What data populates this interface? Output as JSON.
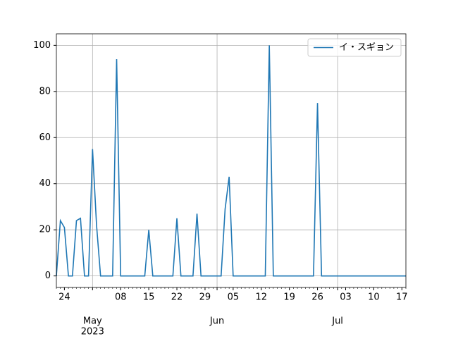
{
  "chart_data": {
    "type": "line",
    "x": [
      "2023-04-22",
      "2023-04-23",
      "2023-04-24",
      "2023-04-25",
      "2023-04-26",
      "2023-04-27",
      "2023-04-28",
      "2023-04-29",
      "2023-04-30",
      "2023-05-01",
      "2023-05-02",
      "2023-05-03",
      "2023-05-04",
      "2023-05-05",
      "2023-05-06",
      "2023-05-07",
      "2023-05-08",
      "2023-05-09",
      "2023-05-10",
      "2023-05-11",
      "2023-05-12",
      "2023-05-13",
      "2023-05-14",
      "2023-05-15",
      "2023-05-16",
      "2023-05-17",
      "2023-05-18",
      "2023-05-19",
      "2023-05-20",
      "2023-05-21",
      "2023-05-22",
      "2023-05-23",
      "2023-05-24",
      "2023-05-25",
      "2023-05-26",
      "2023-05-27",
      "2023-05-28",
      "2023-05-29",
      "2023-05-30",
      "2023-05-31",
      "2023-06-01",
      "2023-06-02",
      "2023-06-03",
      "2023-06-04",
      "2023-06-05",
      "2023-06-06",
      "2023-06-07",
      "2023-06-08",
      "2023-06-09",
      "2023-06-10",
      "2023-06-11",
      "2023-06-12",
      "2023-06-13",
      "2023-06-14",
      "2023-06-15",
      "2023-06-16",
      "2023-06-17",
      "2023-06-18",
      "2023-06-19",
      "2023-06-20",
      "2023-06-21",
      "2023-06-22",
      "2023-06-23",
      "2023-06-24",
      "2023-06-25",
      "2023-06-26",
      "2023-06-27",
      "2023-06-28",
      "2023-06-29",
      "2023-06-30",
      "2023-07-01",
      "2023-07-02",
      "2023-07-03",
      "2023-07-04",
      "2023-07-05",
      "2023-07-06",
      "2023-07-07",
      "2023-07-08",
      "2023-07-09",
      "2023-07-10",
      "2023-07-11",
      "2023-07-12",
      "2023-07-13",
      "2023-07-14",
      "2023-07-15",
      "2023-07-16",
      "2023-07-17",
      "2023-07-18"
    ],
    "series": [
      {
        "name": "イ・スギョン",
        "color": "#1f77b4",
        "values": [
          0,
          24,
          21,
          0,
          0,
          24,
          25,
          0,
          0,
          55,
          22,
          0,
          0,
          0,
          0,
          94,
          0,
          0,
          0,
          0,
          0,
          0,
          0,
          20,
          0,
          0,
          0,
          0,
          0,
          0,
          25,
          0,
          0,
          0,
          0,
          27,
          0,
          0,
          0,
          0,
          0,
          0,
          29,
          43,
          0,
          0,
          0,
          0,
          0,
          0,
          0,
          0,
          0,
          100,
          0,
          0,
          0,
          0,
          0,
          0,
          0,
          0,
          0,
          0,
          0,
          75,
          0,
          0,
          0,
          0,
          0,
          0,
          0,
          0,
          0,
          0,
          0,
          0,
          0,
          0,
          0,
          0,
          0,
          0,
          0,
          0,
          0,
          0
        ]
      }
    ],
    "xlim": [
      "2023-04-22",
      "2023-07-18"
    ],
    "xticks": [
      {
        "value": "2023-04-24",
        "label": "24"
      },
      {
        "value": "2023-05-08",
        "label": "08"
      },
      {
        "value": "2023-05-15",
        "label": "15"
      },
      {
        "value": "2023-05-22",
        "label": "22"
      },
      {
        "value": "2023-05-29",
        "label": "29"
      },
      {
        "value": "2023-06-05",
        "label": "05"
      },
      {
        "value": "2023-06-12",
        "label": "12"
      },
      {
        "value": "2023-06-19",
        "label": "19"
      },
      {
        "value": "2023-06-26",
        "label": "26"
      },
      {
        "value": "2023-07-03",
        "label": "03"
      },
      {
        "value": "2023-07-10",
        "label": "10"
      },
      {
        "value": "2023-07-17",
        "label": "17"
      }
    ],
    "xticks_major": [
      {
        "value": "2023-05-01",
        "label": "May",
        "year": "2023"
      },
      {
        "value": "2023-06-01",
        "label": "Jun"
      },
      {
        "value": "2023-07-01",
        "label": "Jul"
      }
    ],
    "ylim": [
      -5,
      105
    ],
    "yticks": [
      0,
      20,
      40,
      60,
      80,
      100
    ],
    "grid": true,
    "legend": "upper right"
  }
}
